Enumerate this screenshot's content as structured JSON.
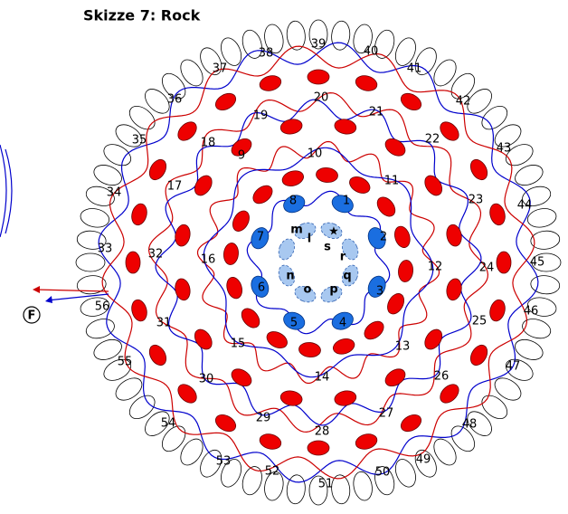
{
  "title": "Skizze 7: Rock",
  "numbers": [
    "1",
    "2",
    "3",
    "4",
    "5",
    "6",
    "7",
    "8",
    "9",
    "10",
    "11",
    "12",
    "13",
    "14",
    "15",
    "16",
    "17",
    "18",
    "19",
    "20",
    "21",
    "22",
    "23",
    "24",
    "25",
    "26",
    "27",
    "28",
    "29",
    "30",
    "31",
    "32",
    "33",
    "34",
    "35",
    "36",
    "37",
    "38",
    "39",
    "40",
    "41",
    "42",
    "43",
    "44",
    "45",
    "46",
    "47",
    "48",
    "49",
    "50",
    "51",
    "52",
    "53",
    "54",
    "55",
    "56"
  ],
  "letters": [
    "l",
    "m",
    "n",
    "o",
    "p",
    "q",
    "r",
    "s"
  ],
  "start": "F"
}
